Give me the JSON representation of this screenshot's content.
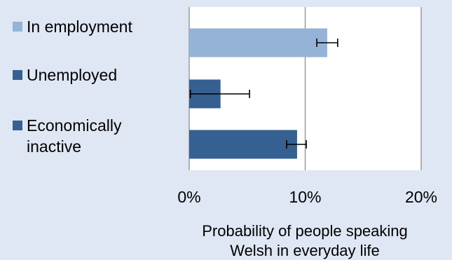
{
  "chart_data": {
    "type": "bar",
    "orientation": "horizontal",
    "categories": [
      "In employment",
      "Unemployed",
      "Economically inactive"
    ],
    "category_display": [
      [
        "In employment"
      ],
      [
        "Unemployed"
      ],
      [
        "Economically",
        "inactive"
      ]
    ],
    "values": [
      11.9,
      2.7,
      9.3
    ],
    "error_low": [
      11.0,
      0.1,
      8.4
    ],
    "error_high": [
      12.8,
      5.2,
      10.1
    ],
    "colors": [
      "#95b3d7",
      "#366092",
      "#366092"
    ],
    "xlim": [
      0,
      20
    ],
    "xticks": [
      0,
      10,
      20
    ],
    "xtick_labels": [
      "0%",
      "10%",
      "20%"
    ],
    "xlabel": [
      "Probability of people speaking",
      "Welsh in everyday life"
    ],
    "grid": true,
    "legend_position": "left"
  }
}
